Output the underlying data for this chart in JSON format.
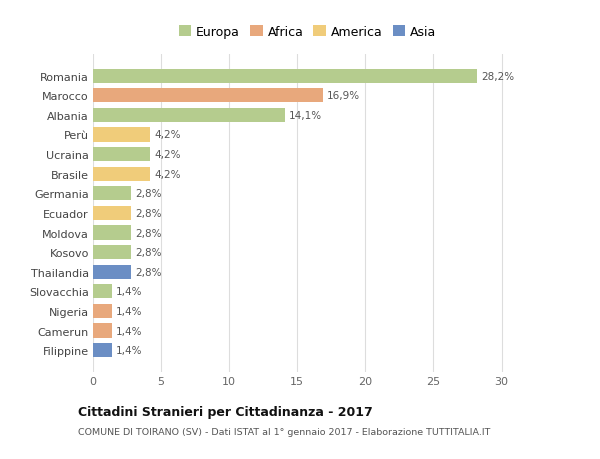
{
  "categories": [
    "Romania",
    "Marocco",
    "Albania",
    "Perù",
    "Ucraina",
    "Brasile",
    "Germania",
    "Ecuador",
    "Moldova",
    "Kosovo",
    "Thailandia",
    "Slovacchia",
    "Nigeria",
    "Camerun",
    "Filippine"
  ],
  "values": [
    28.2,
    16.9,
    14.1,
    4.2,
    4.2,
    4.2,
    2.8,
    2.8,
    2.8,
    2.8,
    2.8,
    1.4,
    1.4,
    1.4,
    1.4
  ],
  "labels": [
    "28,2%",
    "16,9%",
    "14,1%",
    "4,2%",
    "4,2%",
    "4,2%",
    "2,8%",
    "2,8%",
    "2,8%",
    "2,8%",
    "2,8%",
    "1,4%",
    "1,4%",
    "1,4%",
    "1,4%"
  ],
  "colors": [
    "#b5cc8e",
    "#e8a87c",
    "#b5cc8e",
    "#f0cc7a",
    "#b5cc8e",
    "#f0cc7a",
    "#b5cc8e",
    "#f0cc7a",
    "#b5cc8e",
    "#b5cc8e",
    "#6b8ec4",
    "#b5cc8e",
    "#e8a87c",
    "#e8a87c",
    "#6b8ec4"
  ],
  "legend_labels": [
    "Europa",
    "Africa",
    "America",
    "Asia"
  ],
  "legend_colors": [
    "#b5cc8e",
    "#e8a87c",
    "#f0cc7a",
    "#6b8ec4"
  ],
  "title": "Cittadini Stranieri per Cittadinanza - 2017",
  "subtitle": "COMUNE DI TOIRANO (SV) - Dati ISTAT al 1° gennaio 2017 - Elaborazione TUTTITALIA.IT",
  "xlim": [
    0,
    31.5
  ],
  "xticks": [
    0,
    5,
    10,
    15,
    20,
    25,
    30
  ],
  "bg_color": "#ffffff",
  "bar_height": 0.72
}
